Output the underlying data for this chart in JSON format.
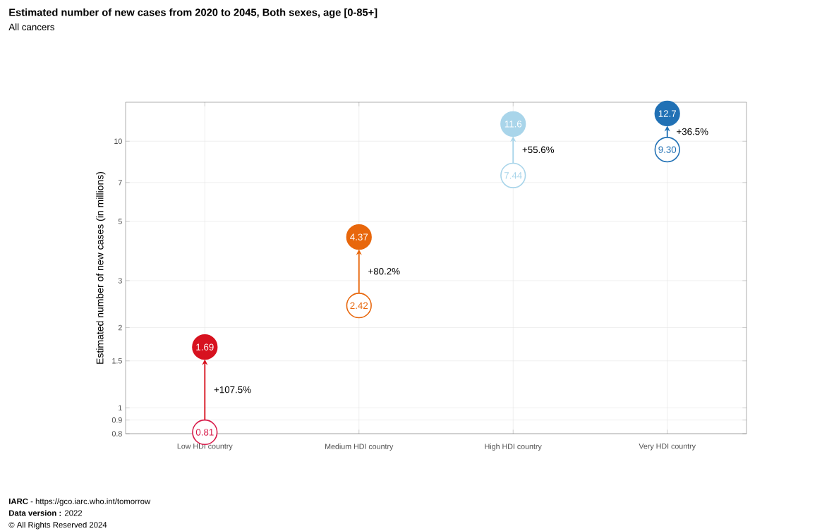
{
  "chart_data": {
    "type": "scatter",
    "title": "Estimated number of new cases from 2020 to 2045, Both sexes, age [0-85+]",
    "subtitle": "All cancers",
    "ylabel": "Estimated number of new cases (in millions)",
    "categories": [
      "Low HDI country",
      "Medium HDI country",
      "High HDI country",
      "Very HDI country"
    ],
    "series": [
      {
        "colors": [
          "#d81b4a",
          "#e8670c",
          "#a9d5ea",
          "#2171b5"
        ],
        "values": [
          0.81,
          2.42,
          7.44,
          9.3
        ],
        "value_labels": [
          "0.81",
          "2.42",
          "7.44",
          "9.30"
        ]
      },
      {
        "colors": [
          "#d7121f",
          "#e8670c",
          "#a9d5ea",
          "#2171b5"
        ],
        "values": [
          1.69,
          4.37,
          11.6,
          12.7
        ],
        "value_labels": [
          "1.69",
          "4.37",
          "11.6",
          "12.7"
        ]
      }
    ],
    "log": true,
    "ylim": [
      0.8,
      14
    ],
    "yticks": [
      0.8,
      0.9,
      1,
      1.5,
      2,
      3,
      5,
      7,
      10
    ],
    "grid": true,
    "marker": "circle",
    "annotations": [
      "+107.5%",
      "+80.2%",
      "+55.6%",
      "+36.5%",
      "**IARC** - https://gco.iarc.who.int/tomorrow",
      "**Data version :** 2022",
      "© All Rights Reserved 2024"
    ]
  }
}
